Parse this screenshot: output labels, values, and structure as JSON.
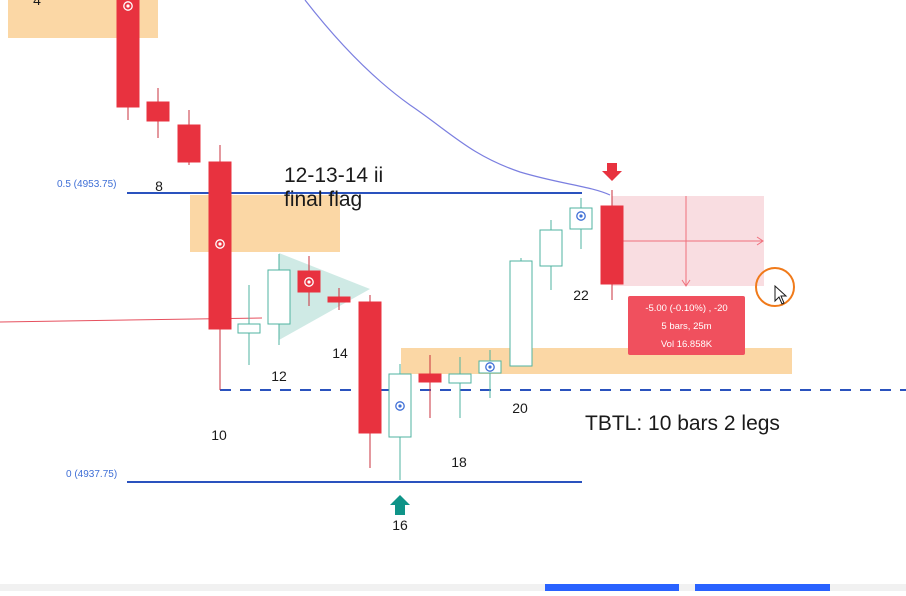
{
  "chart_data": {
    "type": "candlestick",
    "bar_numbers": [
      4,
      8,
      10,
      12,
      14,
      16,
      18,
      20,
      22
    ],
    "levels": [
      {
        "name": "fib-0.5",
        "label": "0.5 (4953.75)",
        "value": 4953.75,
        "color": "#2a52be",
        "style": "solid"
      },
      {
        "name": "fib-0",
        "label": "0 (4937.75)",
        "value": 4937.75,
        "color": "#2a52be",
        "style": "solid"
      },
      {
        "name": "breakout-line",
        "label": "",
        "value": 4945.25,
        "color": "#2a52be",
        "style": "dashed"
      }
    ],
    "annotations": {
      "flag_line1": "12-13-14 ii",
      "flag_line2": "final flag",
      "tbtl": "TBTL: 10 bars 2 legs"
    },
    "measure_tooltip": {
      "line1": "-5.00 (-0.10%) , -20",
      "line2": "5 bars, 25m",
      "line3": "Vol 16.858K"
    },
    "colors": {
      "bear": "#e8323f",
      "bull_outline": "#4fb3a0",
      "bull_fill": "#ffffff",
      "zone": "#fbd7a5",
      "ema": "#7b7fe0",
      "level": "#2a52be",
      "measure_fill": "#f8d7dc",
      "tooltip_bg": "#f0505e",
      "arrow_down": "#e8323f",
      "arrow_up": "#0f9488",
      "cursor_ring": "#f07a1a",
      "triangle": "#bfe3dc"
    }
  }
}
